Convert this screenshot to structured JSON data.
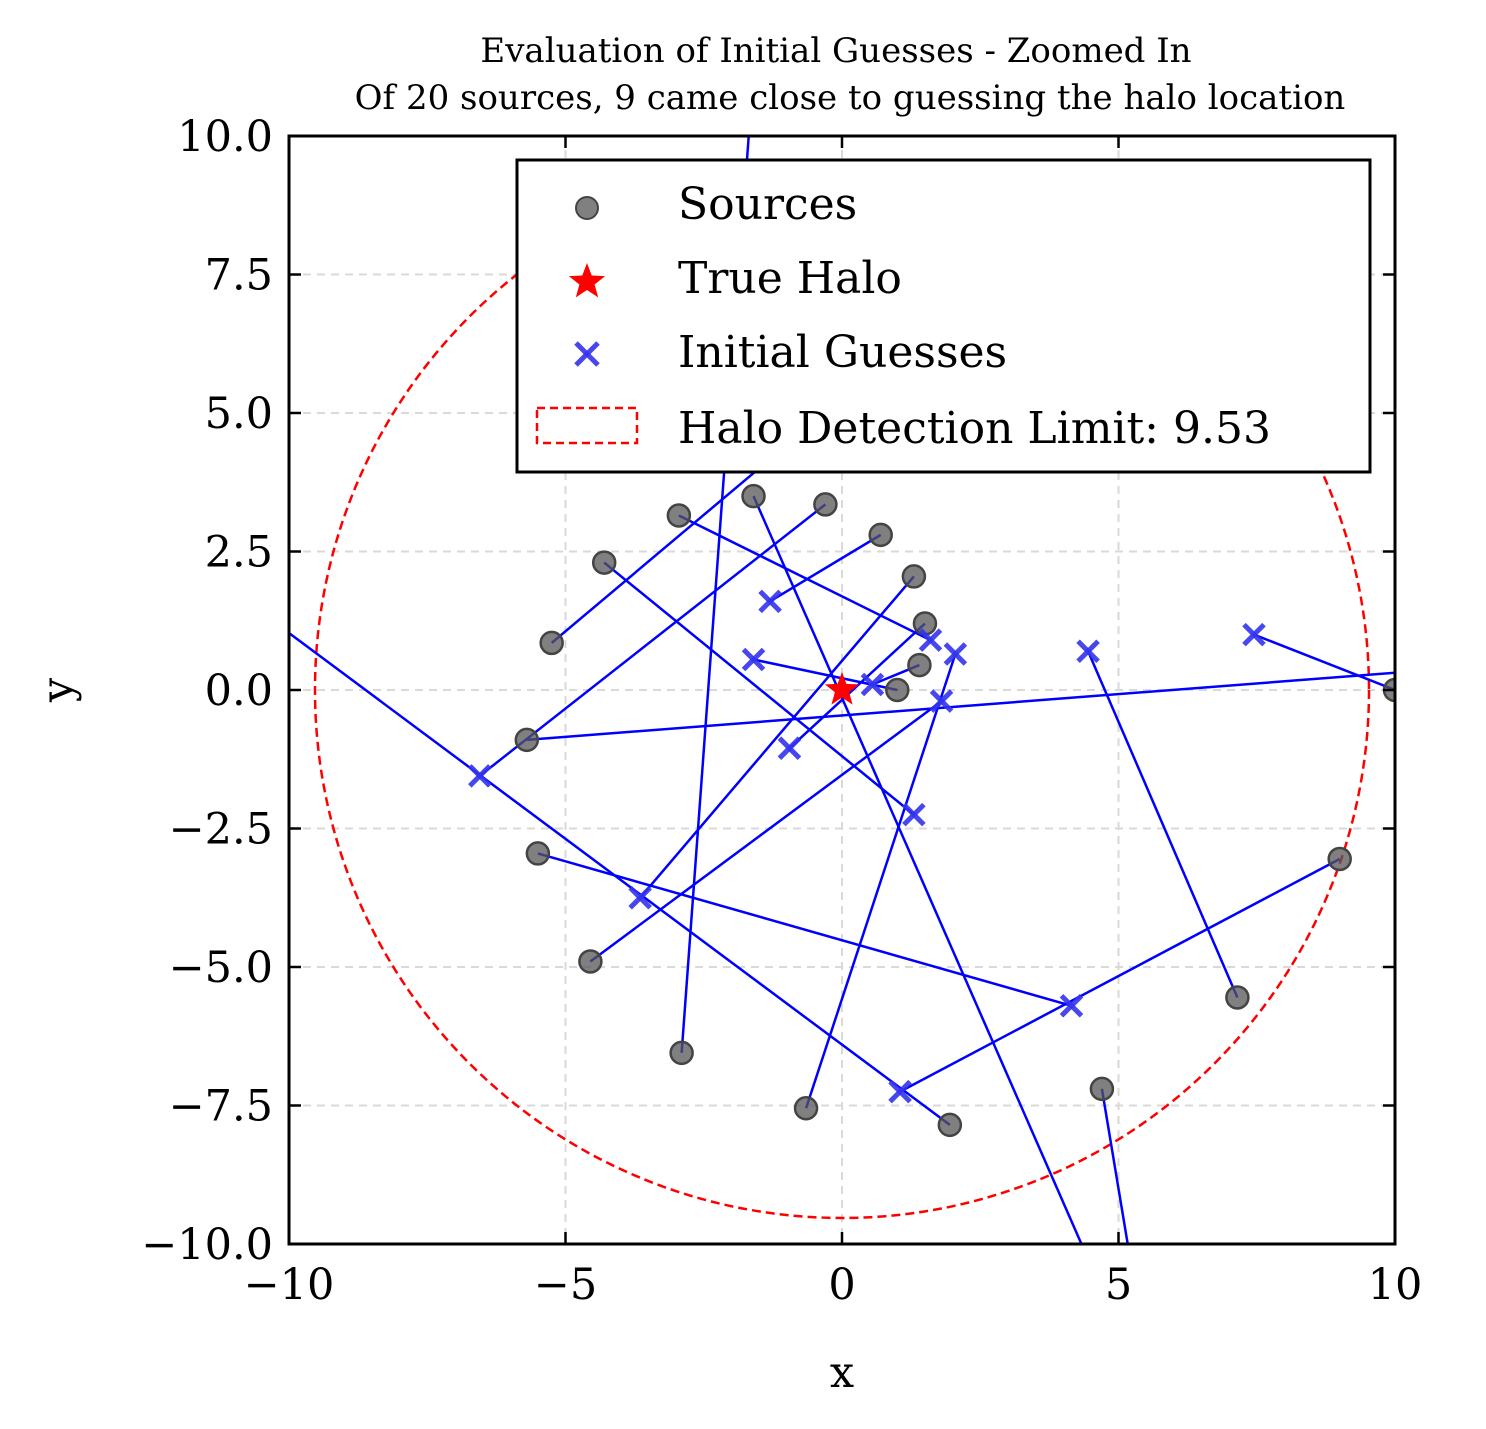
{
  "chart_data": {
    "type": "scatter",
    "title": "Evaluation of Initial Guesses - Zoomed In",
    "subtitle": "Of 20 sources, 9 came close to guessing the halo location",
    "xlabel": "x",
    "ylabel": "y",
    "xlim": [
      -10,
      10
    ],
    "ylim": [
      -10,
      10
    ],
    "x_ticks": [
      {
        "value": -10,
        "label": "−10"
      },
      {
        "value": -5,
        "label": "−5"
      },
      {
        "value": 0,
        "label": "0"
      },
      {
        "value": 5,
        "label": "5"
      },
      {
        "value": 10,
        "label": "10"
      }
    ],
    "y_ticks": [
      {
        "value": 10,
        "label": "10.0"
      },
      {
        "value": 7.5,
        "label": "7.5"
      },
      {
        "value": 5,
        "label": "5.0"
      },
      {
        "value": 2.5,
        "label": "2.5"
      },
      {
        "value": 0,
        "label": "0.0"
      },
      {
        "value": -2.5,
        "label": "−2.5"
      },
      {
        "value": -5,
        "label": "−5.0"
      },
      {
        "value": -7.5,
        "label": "−7.5"
      },
      {
        "value": -10,
        "label": "−10.0"
      }
    ],
    "grid": true,
    "legend_position": "top-right",
    "legend": [
      {
        "label": "Sources",
        "marker": "circle",
        "color": "#555555"
      },
      {
        "label": "True Halo",
        "marker": "star",
        "color": "#ff0000"
      },
      {
        "label": "Initial Guesses",
        "marker": "x",
        "color": "#3333ee"
      },
      {
        "label": "Halo Detection Limit: 9.53",
        "marker": "dashed-box",
        "color": "#ff0000"
      }
    ],
    "true_halo": {
      "x": 0,
      "y": 0
    },
    "detection_limit_radius": 9.53,
    "colors": {
      "sources": "#555555",
      "guesses": "#3333ee",
      "lines": "#0000ff",
      "halo": "#ff0000",
      "circle": "#ff0000",
      "grid": "#d9d9d9"
    },
    "sources": [
      {
        "x": -1.6,
        "y": 3.5
      },
      {
        "x": -0.3,
        "y": 3.35
      },
      {
        "x": -2.95,
        "y": 3.15
      },
      {
        "x": 0.7,
        "y": 2.8
      },
      {
        "x": -4.3,
        "y": 2.3
      },
      {
        "x": 1.3,
        "y": 2.05
      },
      {
        "x": -5.25,
        "y": 0.85
      },
      {
        "x": 1.5,
        "y": 1.2
      },
      {
        "x": 1.4,
        "y": 0.45
      },
      {
        "x": 1.0,
        "y": 0.0
      },
      {
        "x": 10.0,
        "y": 0.0
      },
      {
        "x": -5.7,
        "y": -0.9
      },
      {
        "x": -5.5,
        "y": -2.95
      },
      {
        "x": 9.0,
        "y": -3.05
      },
      {
        "x": -4.55,
        "y": -4.9
      },
      {
        "x": 7.15,
        "y": -5.55
      },
      {
        "x": -2.9,
        "y": -6.55
      },
      {
        "x": 4.7,
        "y": -7.2
      },
      {
        "x": -0.65,
        "y": -7.55
      },
      {
        "x": 1.95,
        "y": -7.85
      }
    ],
    "guesses": [
      {
        "x": -6.55,
        "y": -1.55
      },
      {
        "x": -3.65,
        "y": -3.75
      },
      {
        "x": -1.3,
        "y": 1.6
      },
      {
        "x": -1.6,
        "y": 0.55
      },
      {
        "x": 0.55,
        "y": 0.1
      },
      {
        "x": 1.6,
        "y": 0.9
      },
      {
        "x": 2.05,
        "y": 0.65
      },
      {
        "x": 4.45,
        "y": 0.7
      },
      {
        "x": 7.45,
        "y": 1.0
      },
      {
        "x": 1.8,
        "y": -0.2
      },
      {
        "x": -0.95,
        "y": -1.05
      },
      {
        "x": 1.3,
        "y": -2.25
      },
      {
        "x": 4.15,
        "y": -5.7
      },
      {
        "x": 1.05,
        "y": -7.25
      }
    ],
    "connections": [
      {
        "x1": -1.6,
        "y1": 3.5,
        "x2": 4.55,
        "y2": -10.5
      },
      {
        "x1": -0.3,
        "y1": 3.35,
        "x2": -6.55,
        "y2": -1.55
      },
      {
        "x1": -2.95,
        "y1": 3.15,
        "x2": 1.6,
        "y2": 0.9
      },
      {
        "x1": 0.7,
        "y1": 2.8,
        "x2": -1.3,
        "y2": 1.6
      },
      {
        "x1": -4.3,
        "y1": 2.3,
        "x2": 1.3,
        "y2": -2.25
      },
      {
        "x1": 1.3,
        "y1": 2.05,
        "x2": -3.65,
        "y2": -3.75
      },
      {
        "x1": -5.25,
        "y1": 0.85,
        "x2": -1.5,
        "y2": 4.0
      },
      {
        "x1": 1.5,
        "y1": 1.2,
        "x2": -0.95,
        "y2": -1.05
      },
      {
        "x1": 1.4,
        "y1": 0.45,
        "x2": 0.55,
        "y2": 0.1
      },
      {
        "x1": 1.0,
        "y1": 0.0,
        "x2": -1.6,
        "y2": 0.55
      },
      {
        "x1": 10.0,
        "y1": 0.0,
        "x2": 7.45,
        "y2": 1.0
      },
      {
        "x1": -5.7,
        "y1": -0.9,
        "x2": 10.5,
        "y2": 0.35
      },
      {
        "x1": -5.5,
        "y1": -2.95,
        "x2": 4.15,
        "y2": -5.7
      },
      {
        "x1": 9.0,
        "y1": -3.05,
        "x2": 1.05,
        "y2": -7.25
      },
      {
        "x1": -4.55,
        "y1": -4.9,
        "x2": 1.8,
        "y2": -0.2
      },
      {
        "x1": 7.15,
        "y1": -5.55,
        "x2": 4.45,
        "y2": 0.7
      },
      {
        "x1": -2.9,
        "y1": -6.55,
        "x2": -1.65,
        "y2": 10.5
      },
      {
        "x1": 4.7,
        "y1": -7.2,
        "x2": 5.25,
        "y2": -10.5
      },
      {
        "x1": -0.65,
        "y1": -7.55,
        "x2": 2.05,
        "y2": 0.65
      },
      {
        "x1": 1.95,
        "y1": -7.85,
        "x2": -10.5,
        "y2": 1.4
      }
    ]
  }
}
